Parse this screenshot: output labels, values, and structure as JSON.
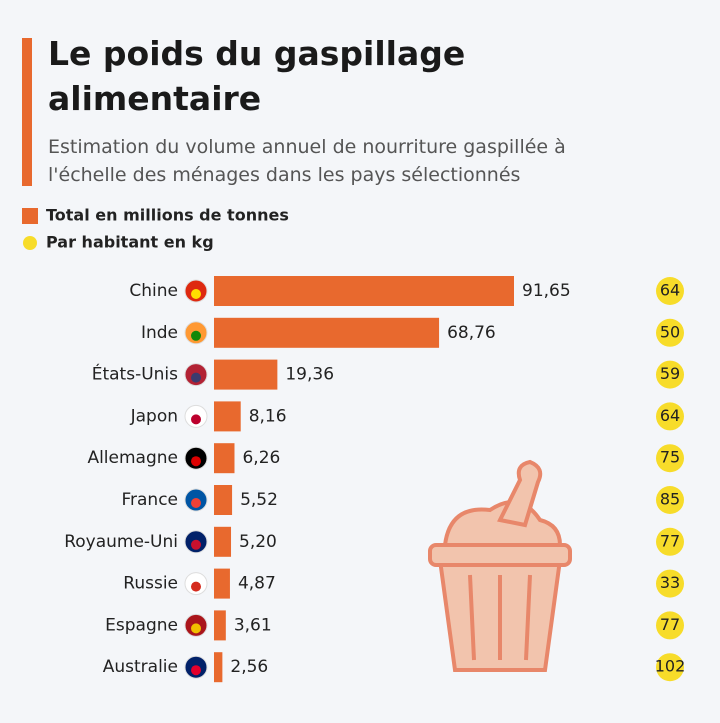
{
  "chart_data": {
    "type": "bar",
    "title": "Le poids du gaspillage alimentaire",
    "subtitle": "Estimation du volume annuel de nourriture gaspillée à l'échelle des ménages dans les pays sélectionnés",
    "categories": [
      "Chine",
      "Inde",
      "États-Unis",
      "Japon",
      "Allemagne",
      "France",
      "Royaume-Uni",
      "Russie",
      "Espagne",
      "Australie"
    ],
    "series": [
      {
        "name": "Total en millions de tonnes",
        "color": "#e8692e",
        "values": [
          91.65,
          68.76,
          19.36,
          8.16,
          6.26,
          5.52,
          5.2,
          4.87,
          3.61,
          2.56
        ],
        "value_labels": [
          "91,65",
          "68,76",
          "19,36",
          "8,16",
          "6,26",
          "5,52",
          "5,20",
          "4,87",
          "3,61",
          "2,56"
        ]
      },
      {
        "name": "Par habitant en kg",
        "color": "#f7dc2a",
        "values": [
          64,
          50,
          59,
          64,
          75,
          85,
          77,
          33,
          77,
          102
        ]
      }
    ]
  }
}
